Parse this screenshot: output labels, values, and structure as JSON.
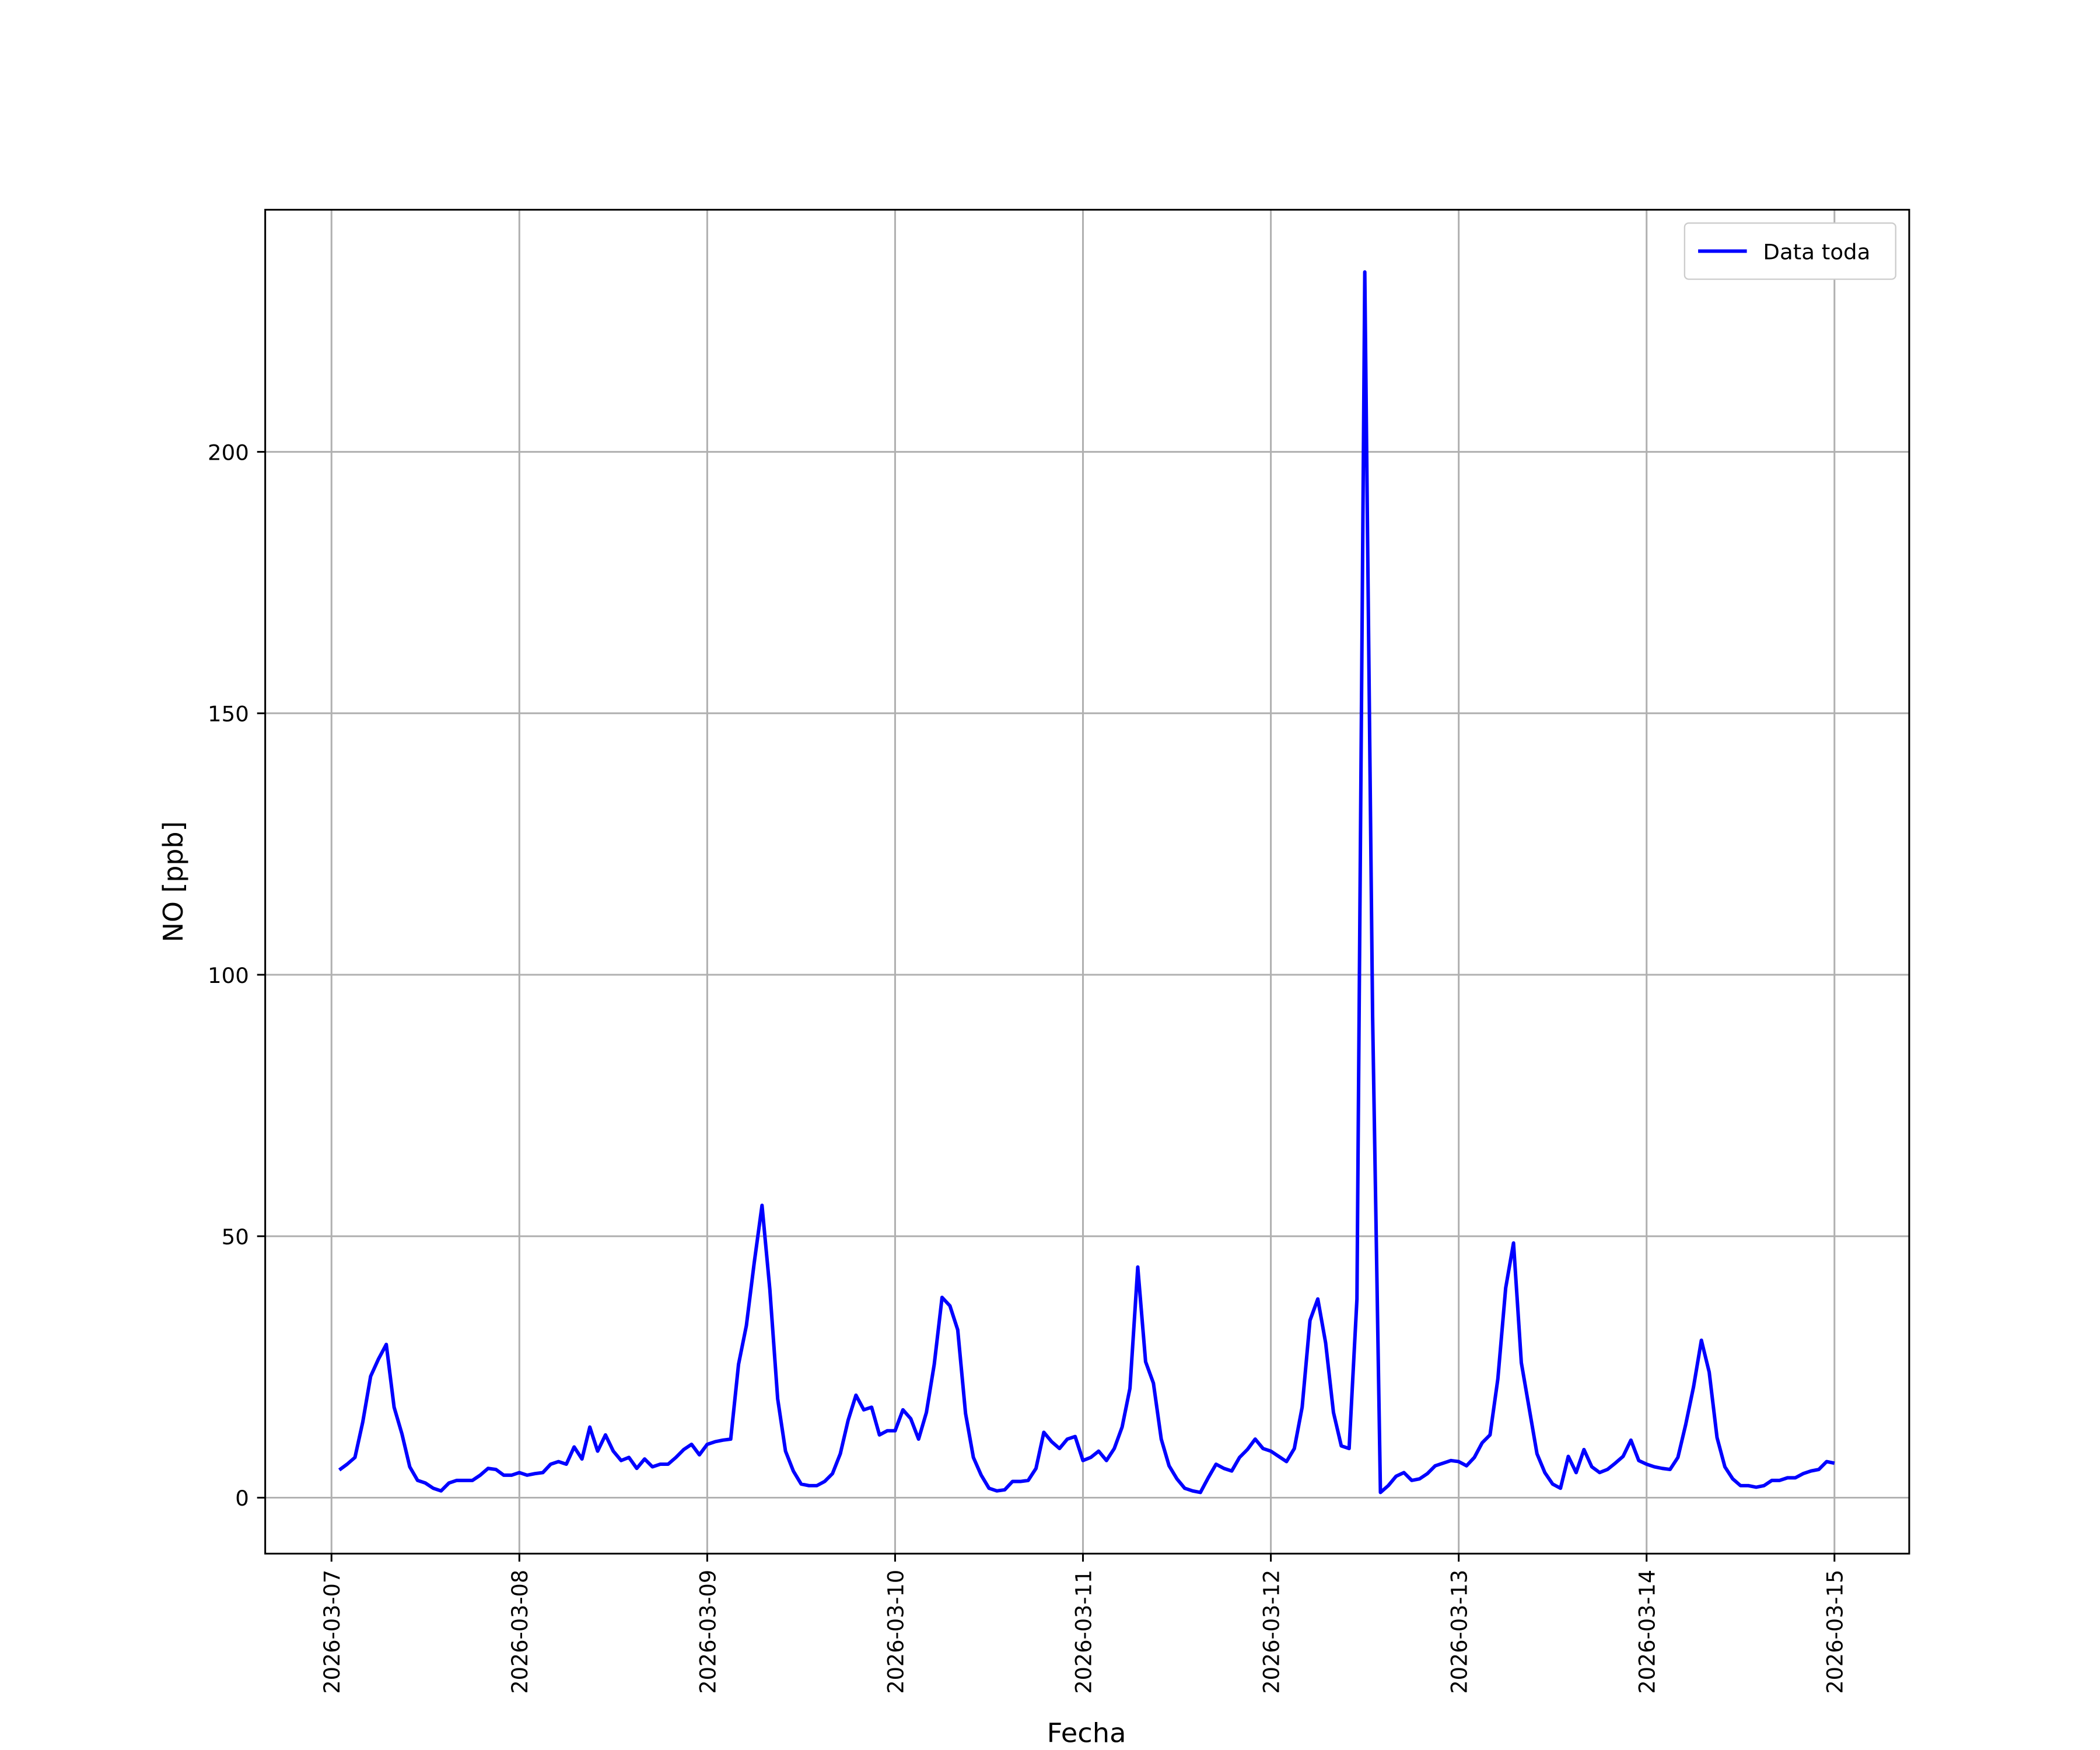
{
  "chart_data": {
    "type": "line",
    "xlabel": "Fecha",
    "ylabel": "NO [ppb]",
    "x": [
      "2026-03-07T01:00",
      "2026-03-07T02:00",
      "2026-03-07T03:00",
      "2026-03-07T04:00",
      "2026-03-07T05:00",
      "2026-03-07T06:00",
      "2026-03-07T07:00",
      "2026-03-07T08:00",
      "2026-03-07T09:00",
      "2026-03-07T10:00",
      "2026-03-07T11:00",
      "2026-03-07T12:00",
      "2026-03-07T13:00",
      "2026-03-07T14:00",
      "2026-03-07T15:00",
      "2026-03-07T16:00",
      "2026-03-07T17:00",
      "2026-03-07T18:00",
      "2026-03-07T19:00",
      "2026-03-07T20:00",
      "2026-03-07T21:00",
      "2026-03-07T22:00",
      "2026-03-07T23:00",
      "2026-03-08T00:00",
      "2026-03-08T01:00",
      "2026-03-08T02:00",
      "2026-03-08T03:00",
      "2026-03-08T04:00",
      "2026-03-08T05:00",
      "2026-03-08T06:00",
      "2026-03-08T07:00",
      "2026-03-08T08:00",
      "2026-03-08T09:00",
      "2026-03-08T10:00",
      "2026-03-08T11:00",
      "2026-03-08T12:00",
      "2026-03-08T13:00",
      "2026-03-08T14:00",
      "2026-03-08T15:00",
      "2026-03-08T16:00",
      "2026-03-08T17:00",
      "2026-03-08T18:00",
      "2026-03-08T19:00",
      "2026-03-08T20:00",
      "2026-03-08T21:00",
      "2026-03-08T22:00",
      "2026-03-08T23:00",
      "2026-03-09T00:00",
      "2026-03-09T01:00",
      "2026-03-09T02:00",
      "2026-03-09T03:00",
      "2026-03-09T04:00",
      "2026-03-09T05:00",
      "2026-03-09T06:00",
      "2026-03-09T07:00",
      "2026-03-09T08:00",
      "2026-03-09T09:00",
      "2026-03-09T10:00",
      "2026-03-09T11:00",
      "2026-03-09T12:00",
      "2026-03-09T13:00",
      "2026-03-09T14:00",
      "2026-03-09T15:00",
      "2026-03-09T16:00",
      "2026-03-09T17:00",
      "2026-03-09T18:00",
      "2026-03-09T19:00",
      "2026-03-09T20:00",
      "2026-03-09T21:00",
      "2026-03-09T22:00",
      "2026-03-09T23:00",
      "2026-03-10T00:00",
      "2026-03-10T01:00",
      "2026-03-10T02:00",
      "2026-03-10T03:00",
      "2026-03-10T04:00",
      "2026-03-10T05:00",
      "2026-03-10T06:00",
      "2026-03-10T07:00",
      "2026-03-10T08:00",
      "2026-03-10T09:00",
      "2026-03-10T10:00",
      "2026-03-10T11:00",
      "2026-03-10T12:00",
      "2026-03-10T13:00",
      "2026-03-10T14:00",
      "2026-03-10T15:00",
      "2026-03-10T16:00",
      "2026-03-10T17:00",
      "2026-03-10T18:00",
      "2026-03-10T19:00",
      "2026-03-10T20:00",
      "2026-03-10T21:00",
      "2026-03-10T22:00",
      "2026-03-10T23:00",
      "2026-03-11T00:00",
      "2026-03-11T01:00",
      "2026-03-11T02:00",
      "2026-03-11T03:00",
      "2026-03-11T04:00",
      "2026-03-11T05:00",
      "2026-03-11T06:00",
      "2026-03-11T07:00",
      "2026-03-11T08:00",
      "2026-03-11T09:00",
      "2026-03-11T10:00",
      "2026-03-11T11:00",
      "2026-03-11T12:00",
      "2026-03-11T13:00",
      "2026-03-11T14:00",
      "2026-03-11T15:00",
      "2026-03-11T16:00",
      "2026-03-11T17:00",
      "2026-03-11T18:00",
      "2026-03-11T19:00",
      "2026-03-11T20:00",
      "2026-03-11T21:00",
      "2026-03-11T22:00",
      "2026-03-11T23:00",
      "2026-03-12T00:00",
      "2026-03-12T01:00",
      "2026-03-12T02:00",
      "2026-03-12T03:00",
      "2026-03-12T04:00",
      "2026-03-12T05:00",
      "2026-03-12T06:00",
      "2026-03-12T07:00",
      "2026-03-12T08:00",
      "2026-03-12T09:00",
      "2026-03-12T10:00",
      "2026-03-12T11:00",
      "2026-03-12T12:00",
      "2026-03-12T13:00",
      "2026-03-12T14:00",
      "2026-03-12T15:00",
      "2026-03-12T16:00",
      "2026-03-12T17:00",
      "2026-03-12T18:00",
      "2026-03-12T19:00",
      "2026-03-12T20:00",
      "2026-03-12T21:00",
      "2026-03-12T22:00",
      "2026-03-12T23:00",
      "2026-03-13T00:00",
      "2026-03-13T01:00",
      "2026-03-13T02:00",
      "2026-03-13T03:00",
      "2026-03-13T04:00",
      "2026-03-13T05:00",
      "2026-03-13T06:00",
      "2026-03-13T07:00",
      "2026-03-13T08:00",
      "2026-03-13T09:00",
      "2026-03-13T10:00",
      "2026-03-13T11:00",
      "2026-03-13T12:00",
      "2026-03-13T13:00",
      "2026-03-13T14:00",
      "2026-03-13T15:00",
      "2026-03-13T16:00",
      "2026-03-13T17:00",
      "2026-03-13T18:00",
      "2026-03-13T19:00",
      "2026-03-13T20:00",
      "2026-03-13T21:00",
      "2026-03-13T22:00",
      "2026-03-13T23:00",
      "2026-03-14T00:00",
      "2026-03-14T01:00",
      "2026-03-14T02:00",
      "2026-03-14T03:00",
      "2026-03-14T04:00",
      "2026-03-14T05:00",
      "2026-03-14T06:00",
      "2026-03-14T07:00",
      "2026-03-14T08:00",
      "2026-03-14T09:00",
      "2026-03-14T10:00",
      "2026-03-14T11:00",
      "2026-03-14T12:00",
      "2026-03-14T13:00",
      "2026-03-14T14:00",
      "2026-03-14T15:00",
      "2026-03-14T16:00",
      "2026-03-14T17:00",
      "2026-03-14T18:00",
      "2026-03-14T19:00",
      "2026-03-14T20:00",
      "2026-03-14T21:00",
      "2026-03-14T22:00",
      "2026-03-14T23:00",
      "2026-03-15T00:00"
    ],
    "series": [
      {
        "name": "Data toda",
        "color": "#0000ff",
        "values": [
          5.3,
          6.4,
          7.7,
          14.5,
          23.2,
          26.5,
          29.3,
          17.3,
          12.2,
          5.9,
          3.3,
          2.8,
          1.8,
          1.3,
          2.8,
          3.3,
          3.3,
          3.3,
          4.3,
          5.6,
          5.4,
          4.3,
          4.3,
          4.8,
          4.3,
          4.6,
          4.8,
          6.4,
          6.9,
          6.4,
          9.7,
          7.4,
          13.5,
          8.9,
          12.0,
          8.9,
          7.1,
          7.7,
          5.6,
          7.4,
          5.9,
          6.4,
          6.4,
          7.7,
          9.2,
          10.2,
          8.2,
          10.2,
          10.7,
          11.0,
          11.2,
          25.5,
          32.9,
          44.9,
          55.9,
          39.8,
          18.9,
          8.9,
          5.1,
          2.6,
          2.3,
          2.3,
          3.1,
          4.6,
          8.4,
          14.8,
          19.6,
          16.8,
          17.3,
          12.0,
          12.8,
          12.8,
          16.8,
          15.1,
          11.2,
          16.3,
          25.5,
          38.3,
          36.7,
          32.1,
          16.1,
          7.7,
          4.3,
          1.8,
          1.3,
          1.5,
          3.1,
          3.1,
          3.3,
          5.6,
          12.5,
          10.7,
          9.4,
          11.2,
          11.7,
          7.1,
          7.7,
          8.9,
          7.1,
          9.4,
          13.5,
          20.9,
          44.1,
          26.0,
          21.9,
          11.2,
          6.1,
          3.6,
          1.8,
          1.3,
          1.0,
          3.8,
          6.4,
          5.6,
          5.1,
          7.7,
          9.2,
          11.2,
          9.4,
          8.9,
          7.9,
          6.9,
          9.4,
          17.3,
          33.9,
          38.0,
          29.6,
          16.3,
          9.9,
          9.4,
          38.0,
          234.4,
          92.1,
          1.0,
          2.3,
          4.1,
          4.8,
          3.3,
          3.6,
          4.6,
          6.1,
          6.6,
          7.1,
          6.9,
          6.1,
          7.7,
          10.5,
          12.0,
          22.7,
          40.1,
          48.7,
          25.8,
          17.1,
          8.4,
          4.8,
          2.6,
          1.8,
          7.9,
          4.8,
          9.2,
          5.9,
          4.8,
          5.4,
          6.6,
          7.9,
          11.0,
          7.1,
          6.4,
          5.9,
          5.6,
          5.4,
          7.7,
          14.0,
          21.2,
          30.1,
          24.0,
          11.5,
          5.9,
          3.6,
          2.3,
          2.3,
          2.0,
          2.3,
          3.3,
          3.3,
          3.8,
          3.8,
          4.6,
          5.1,
          5.4,
          6.9,
          6.6
        ]
      }
    ],
    "xlim": [
      "2026-03-06T15:32",
      "2026-03-15T09:33"
    ],
    "xticks": [
      "2026-03-07",
      "2026-03-08",
      "2026-03-09",
      "2026-03-10",
      "2026-03-11",
      "2026-03-12",
      "2026-03-13",
      "2026-03-14",
      "2026-03-15"
    ],
    "ylim": [
      -10.7,
      246.3
    ],
    "yticks": [
      0,
      50,
      100,
      150,
      200
    ],
    "grid": true,
    "legend": "upper right"
  }
}
